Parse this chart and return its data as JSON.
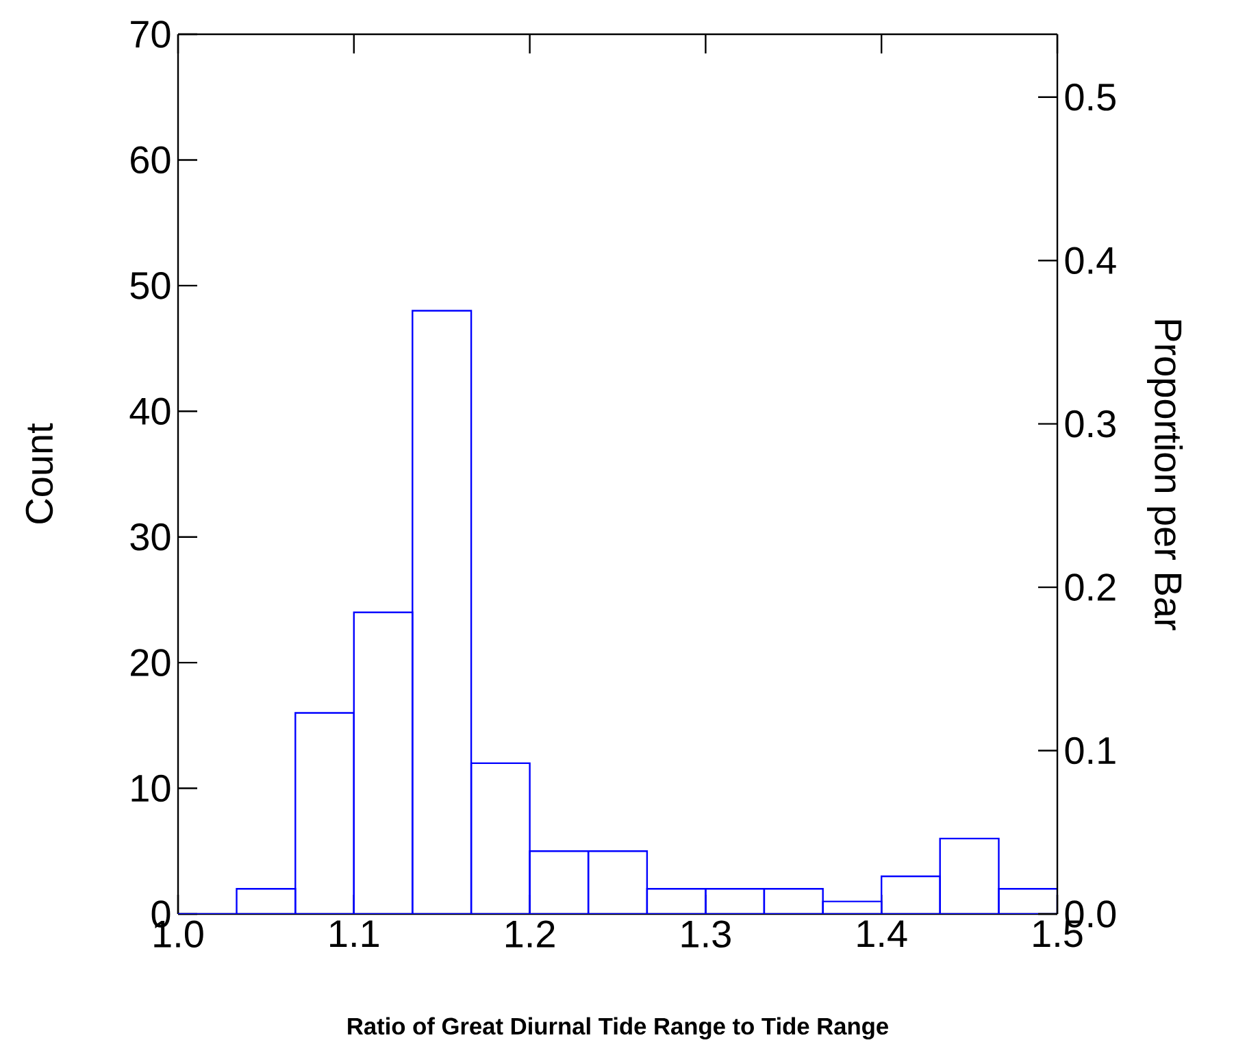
{
  "chart_data": {
    "type": "histogram",
    "xlabel": "Ratio of Great Diurnal Tide Range to Tide Range",
    "ylabel": "Count",
    "y2label": "Proportion per Bar",
    "bins": [
      1.0,
      1.0333,
      1.0667,
      1.1,
      1.1333,
      1.1667,
      1.2,
      1.2333,
      1.2667,
      1.3,
      1.3333,
      1.3667,
      1.4,
      1.4333,
      1.4667,
      1.5
    ],
    "values": [
      0,
      2,
      16,
      24,
      48,
      12,
      5,
      5,
      2,
      2,
      2,
      1,
      3,
      6,
      2
    ],
    "color": "#0000ff",
    "xlim": [
      1.0,
      1.5
    ],
    "xticks": [
      {
        "value": 1.0,
        "label": "1.0"
      },
      1.1,
      1.2,
      1.3,
      1.4,
      1.5
    ],
    "ylim": [
      0,
      70
    ],
    "yticks": [
      0,
      10,
      20,
      30,
      40,
      50,
      60,
      70
    ],
    "y2lim": [
      0,
      0.5385
    ],
    "y2ticks": [
      {
        "value": 0,
        "label": "0.0"
      },
      0.1,
      0.2,
      0.3,
      0.4,
      0.5
    ]
  }
}
